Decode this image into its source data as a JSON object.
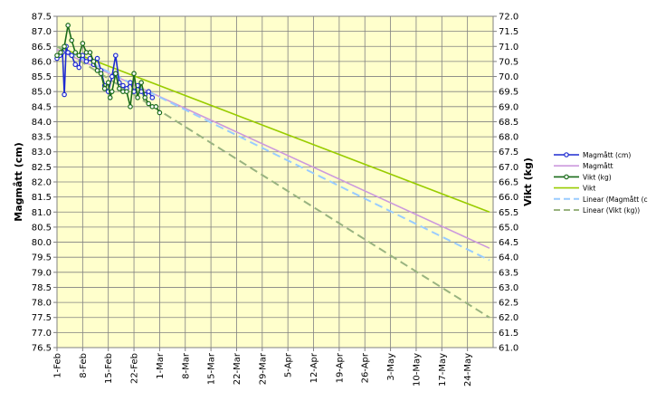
{
  "chart_data": {
    "type": "line",
    "ylabel_left": "Magmått (cm)",
    "ylabel_right": "Vikt (kg)",
    "xlim": [
      "1-Feb",
      "31-May"
    ],
    "ylim_left": [
      76.5,
      87.5
    ],
    "ylim_right": [
      61.0,
      72.0
    ],
    "y_ticks_left": [
      "76.5",
      "77.0",
      "77.5",
      "78.0",
      "78.5",
      "79.0",
      "79.5",
      "80.0",
      "80.5",
      "81.0",
      "81.5",
      "82.0",
      "82.5",
      "83.0",
      "83.5",
      "84.0",
      "84.5",
      "85.0",
      "85.5",
      "86.0",
      "86.5",
      "87.0",
      "87.5"
    ],
    "y_ticks_right": [
      "61.0",
      "61.5",
      "62.0",
      "62.5",
      "63.0",
      "63.5",
      "64.0",
      "64.5",
      "65.0",
      "65.5",
      "66.0",
      "66.5",
      "67.0",
      "67.5",
      "68.0",
      "68.5",
      "69.0",
      "69.5",
      "70.0",
      "70.5",
      "71.0",
      "71.5",
      "72.0"
    ],
    "x_ticks": [
      {
        "label": "1-Feb",
        "day": 0
      },
      {
        "label": "8-Feb",
        "day": 7
      },
      {
        "label": "15-Feb",
        "day": 14
      },
      {
        "label": "22-Feb",
        "day": 21
      },
      {
        "label": "1-Mar",
        "day": 28
      },
      {
        "label": "8-Mar",
        "day": 35
      },
      {
        "label": "15-Mar",
        "day": 42
      },
      {
        "label": "22-Mar",
        "day": 49
      },
      {
        "label": "29-Mar",
        "day": 56
      },
      {
        "label": "5-Apr",
        "day": 63
      },
      {
        "label": "12-Apr",
        "day": 70
      },
      {
        "label": "19-Apr",
        "day": 77
      },
      {
        "label": "26-Apr",
        "day": 84
      },
      {
        "label": "3-May",
        "day": 91
      },
      {
        "label": "10-May",
        "day": 98
      },
      {
        "label": "17-May",
        "day": 105
      },
      {
        "label": "24-May",
        "day": 112
      }
    ],
    "grid": true,
    "legend_position": "right",
    "series": [
      {
        "name": "Magmått (cm)",
        "axis": "left",
        "kind": "line-markers",
        "color": "#1f2bd1",
        "points": [
          [
            0,
            86.1
          ],
          [
            0.8,
            86.2
          ],
          [
            1.5,
            86.3
          ],
          [
            2,
            84.9
          ],
          [
            2.5,
            86.5
          ],
          [
            3,
            86.3
          ],
          [
            4,
            86.2
          ],
          [
            5,
            85.9
          ],
          [
            6,
            85.8
          ],
          [
            6.5,
            86.2
          ],
          [
            7,
            86.2
          ],
          [
            8,
            86.0
          ],
          [
            9,
            86.1
          ],
          [
            10,
            85.9
          ],
          [
            11,
            86.1
          ],
          [
            12,
            85.7
          ],
          [
            13,
            85.2
          ],
          [
            14,
            85.0
          ],
          [
            15,
            85.5
          ],
          [
            16,
            86.2
          ],
          [
            17,
            85.3
          ],
          [
            18,
            85.2
          ],
          [
            19,
            85.1
          ],
          [
            20,
            85.3
          ],
          [
            21,
            85.0
          ],
          [
            22,
            85.2
          ],
          [
            23,
            85.0
          ],
          [
            24,
            84.9
          ],
          [
            25,
            85.0
          ],
          [
            26,
            84.8
          ]
        ]
      },
      {
        "name": "Magmått",
        "axis": "left",
        "kind": "trend",
        "color": "#cc99dd",
        "points": [
          [
            0,
            86.4
          ],
          [
            118,
            79.8
          ]
        ]
      },
      {
        "name": "Vikt (kg)",
        "axis": "right",
        "kind": "line-markers",
        "color": "#1a6b1a",
        "points": [
          [
            0,
            70.7
          ],
          [
            1,
            70.8
          ],
          [
            2,
            71.0
          ],
          [
            3,
            71.7
          ],
          [
            4,
            71.2
          ],
          [
            5,
            70.8
          ],
          [
            6,
            70.7
          ],
          [
            7,
            71.1
          ],
          [
            8,
            70.8
          ],
          [
            9,
            70.8
          ],
          [
            10,
            70.5
          ],
          [
            11,
            70.2
          ],
          [
            12,
            70.1
          ],
          [
            13,
            69.6
          ],
          [
            14,
            69.8
          ],
          [
            14.5,
            69.3
          ],
          [
            15,
            69.5
          ],
          [
            16,
            70.1
          ],
          [
            17,
            69.6
          ],
          [
            18,
            69.5
          ],
          [
            19,
            69.5
          ],
          [
            20,
            69.0
          ],
          [
            21,
            70.1
          ],
          [
            22,
            69.3
          ],
          [
            23,
            69.8
          ],
          [
            24,
            69.3
          ],
          [
            25,
            69.1
          ],
          [
            26,
            69.0
          ],
          [
            27,
            69.0
          ],
          [
            28,
            68.8
          ]
        ]
      },
      {
        "name": "Vikt",
        "axis": "right",
        "kind": "trend",
        "color": "#99cc00",
        "points": [
          [
            0,
            71.0
          ],
          [
            118,
            65.5
          ]
        ]
      },
      {
        "name": "Linear (Magmått (c",
        "axis": "left",
        "kind": "trend-dashed",
        "color": "#99ccff",
        "points": [
          [
            0,
            86.5
          ],
          [
            118,
            79.4
          ]
        ]
      },
      {
        "name": "Linear (Vikt (kg))",
        "axis": "right",
        "kind": "trend-dashed",
        "color": "#99b380",
        "points": [
          [
            0,
            71.0
          ],
          [
            118,
            62.0
          ]
        ]
      }
    ]
  }
}
